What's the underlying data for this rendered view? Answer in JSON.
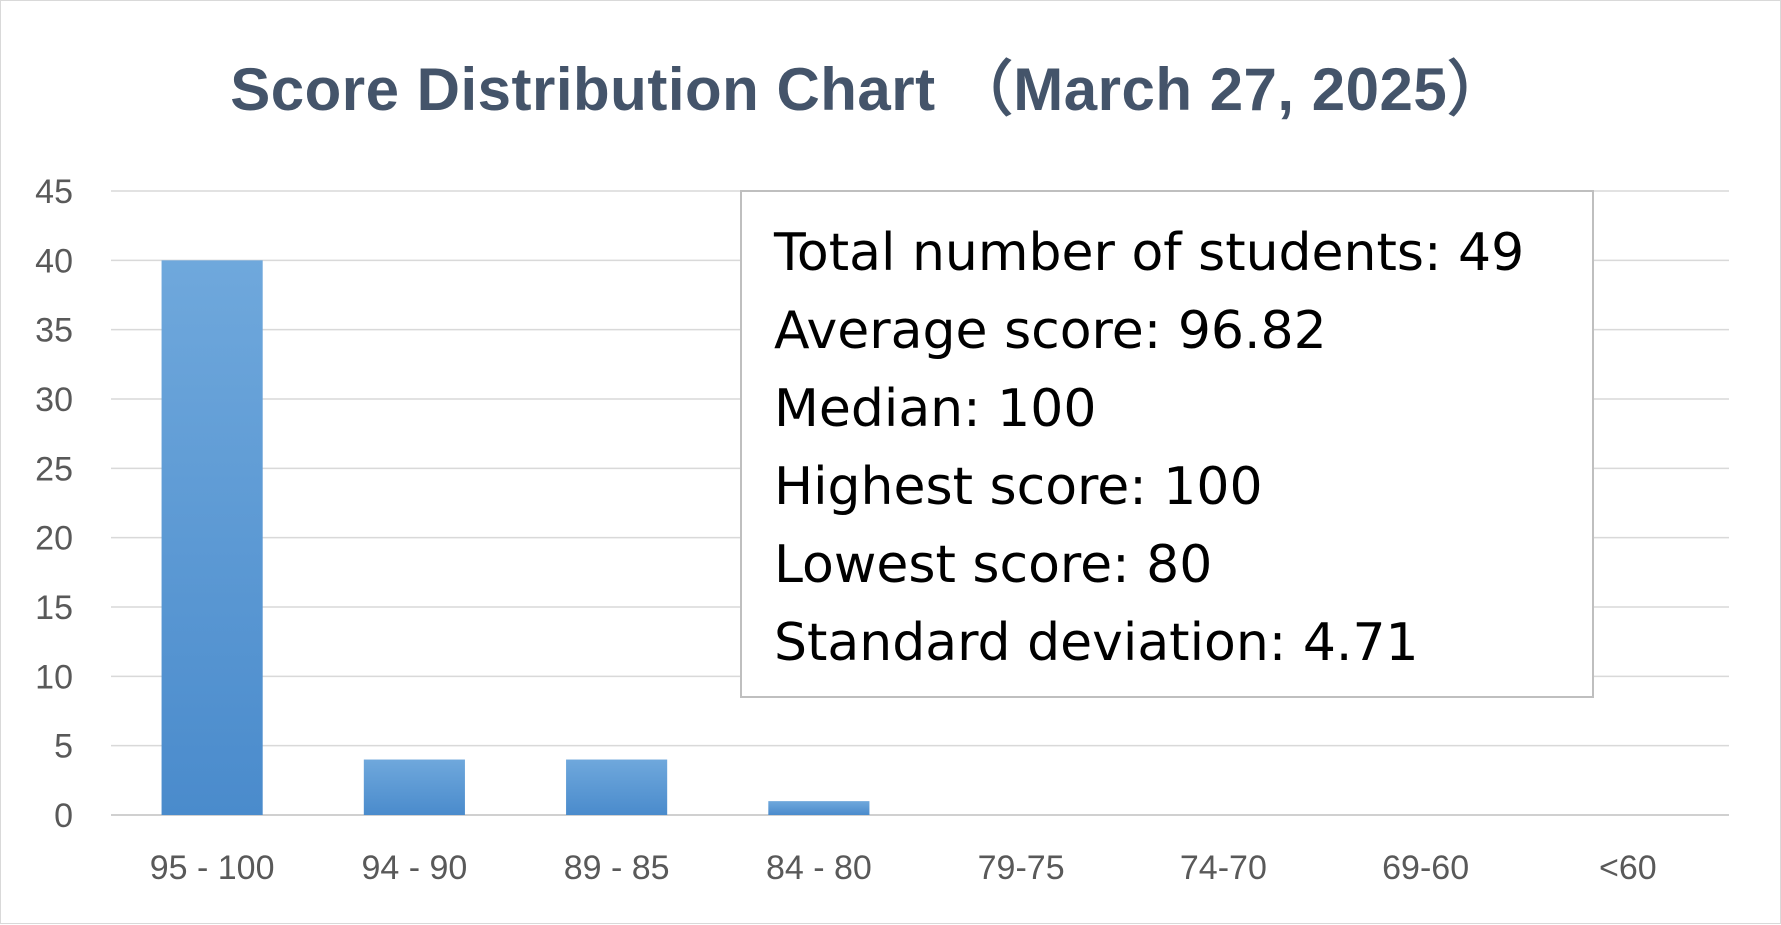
{
  "chart_data": {
    "type": "bar",
    "title": "Score Distribution Chart （March 27, 2025）",
    "categories": [
      "95 - 100",
      "94 - 90",
      "89 - 85",
      "84 - 80",
      "79-75",
      "74-70",
      "69-60",
      "<60"
    ],
    "values": [
      40,
      4,
      4,
      1,
      0,
      0,
      0,
      0
    ],
    "ylim": [
      0,
      45
    ],
    "yticks": [
      0,
      5,
      10,
      15,
      20,
      25,
      30,
      35,
      40,
      45
    ],
    "grid": true,
    "legend": "none",
    "bar_color": "#5b9bd5",
    "bar_color_top": "#6fa8dc",
    "bar_color_bottom": "#4a8bcc",
    "title_color": "#44546a"
  },
  "stats": {
    "total": "Total number of students: 49",
    "average": "Average score: 96.82",
    "median": "Median: 100",
    "highest": "Highest score: 100",
    "lowest": "Lowest score: 80",
    "std_dev": "Standard deviation: 4.71"
  }
}
